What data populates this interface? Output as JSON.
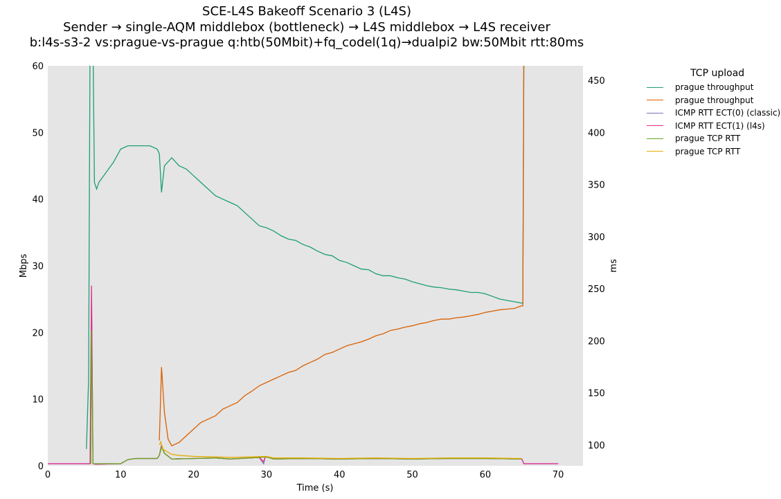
{
  "chart_data": {
    "type": "line",
    "title": [
      "SCE-L4S Bakeoff Scenario 3 (L4S)",
      "Sender → single-AQM middlebox (bottleneck) → L4S middlebox → L4S receiver",
      "b:l4s-s3-2 vs:prague-vs-prague q:htb(50Mbit)+fq_codel(1q)→dualpi2 bw:50Mbit rtt:80ms"
    ],
    "xlabel": "Time (s)",
    "ylabel": "Mbps",
    "y2label": "ms",
    "xlim": [
      0,
      73.4
    ],
    "ylim": [
      0,
      60
    ],
    "y2lim": [
      80,
      464
    ],
    "xticks": [
      0,
      10,
      20,
      30,
      40,
      50,
      60,
      70
    ],
    "yticks": [
      0,
      10,
      20,
      30,
      40,
      50,
      60
    ],
    "y2ticks": [
      100,
      150,
      200,
      250,
      300,
      350,
      400,
      450
    ],
    "grid": false,
    "legend_placement": "outside-right",
    "legend_title": "TCP upload",
    "series": [
      {
        "name": "prague throughput",
        "axis": "left",
        "color": "#1b9e77",
        "x": [
          5.3,
          5.6,
          5.8,
          6.0,
          6.2,
          6.4,
          6.7,
          7,
          8,
          9,
          10,
          11,
          12,
          13,
          14,
          15,
          15.3,
          15.6,
          16,
          17,
          18,
          19,
          20,
          21,
          22,
          23,
          24,
          25,
          26,
          27,
          28,
          29,
          30,
          31,
          32,
          33,
          34,
          35,
          36,
          37,
          38,
          39,
          40,
          41,
          42,
          43,
          44,
          45,
          46,
          47,
          48,
          49,
          50,
          51,
          52,
          53,
          54,
          55,
          56,
          57,
          58,
          59,
          60,
          61,
          62,
          63,
          64,
          65,
          65.15,
          65.3
        ],
        "y": [
          2.5,
          13,
          64,
          64,
          64,
          42.5,
          41.5,
          42.5,
          44,
          45.5,
          47.5,
          48,
          48,
          48,
          48,
          47.5,
          46.8,
          41,
          45,
          46.2,
          45,
          44.5,
          43.5,
          42.5,
          41.5,
          40.5,
          40,
          39.5,
          39,
          38,
          37,
          36,
          35.7,
          35.2,
          34.5,
          34,
          33.8,
          33.2,
          32.8,
          32.2,
          31.7,
          31.5,
          30.8,
          30.5,
          30,
          29.5,
          29.4,
          28.8,
          28.5,
          28.5,
          28.2,
          28,
          27.6,
          27.3,
          27,
          26.8,
          26.7,
          26.5,
          26.4,
          26.2,
          26,
          26,
          25.8,
          25.4,
          25,
          24.8,
          24.6,
          24.4,
          24.4,
          64
        ]
      },
      {
        "name": "prague throughput",
        "axis": "left",
        "color": "#d95f02",
        "x": [
          15.3,
          15.6,
          16,
          16.5,
          17,
          18,
          19,
          20,
          21,
          22,
          23,
          24,
          25,
          26,
          27,
          28,
          29,
          30,
          31,
          32,
          33,
          34,
          35,
          36,
          37,
          38,
          39,
          40,
          41,
          42,
          43,
          44,
          45,
          46,
          47,
          48,
          49,
          50,
          51,
          52,
          53,
          54,
          55,
          56,
          57,
          58,
          59,
          60,
          61,
          62,
          63,
          64,
          65,
          65.15,
          65.3
        ],
        "y": [
          3.8,
          14.8,
          8,
          4,
          3,
          3.5,
          4.5,
          5.5,
          6.5,
          7,
          7.5,
          8.5,
          9,
          9.5,
          10.5,
          11.2,
          12,
          12.5,
          13,
          13.5,
          14,
          14.3,
          15,
          15.5,
          16,
          16.7,
          17,
          17.5,
          18,
          18.3,
          18.6,
          19,
          19.5,
          19.8,
          20.3,
          20.5,
          20.8,
          21,
          21.3,
          21.5,
          21.8,
          22,
          22,
          22.2,
          22.3,
          22.5,
          22.7,
          23,
          23.2,
          23.4,
          23.5,
          23.6,
          24,
          24,
          64
        ]
      },
      {
        "name": "ICMP RTT ECT(0) (classic)",
        "axis": "right",
        "color": "#7570b3",
        "x": [
          0,
          5.5,
          5.8,
          6.0,
          6.2,
          6.5,
          10,
          11,
          12,
          15,
          15.3,
          15.6,
          16,
          17,
          20,
          23,
          25,
          29,
          29.6,
          29.8,
          30,
          31,
          35,
          40,
          45,
          50,
          55,
          60,
          65,
          65.3,
          70
        ],
        "y": [
          82,
          82,
          82,
          240,
          82,
          81.5,
          82,
          86,
          87,
          87,
          90,
          99,
          92,
          86.5,
          87,
          87.5,
          86.5,
          88,
          82,
          88,
          88.5,
          86.5,
          87,
          86.5,
          87,
          86.5,
          87,
          87,
          86.5,
          82,
          82
        ]
      },
      {
        "name": "ICMP RTT ECT(1) (l4s)",
        "axis": "right",
        "color": "#e7298a",
        "x": [
          0,
          5.5,
          5.8,
          6.0,
          6.2,
          6.5,
          10,
          11,
          12,
          15,
          15.3,
          15.6,
          16,
          17,
          20,
          23,
          25,
          29,
          29.6,
          29.8,
          30,
          31,
          35,
          40,
          45,
          50,
          55,
          60,
          65,
          65.3,
          70
        ],
        "y": [
          82,
          82,
          82,
          253,
          82,
          81.5,
          82,
          86,
          87,
          87,
          90,
          100,
          92,
          86.5,
          87,
          87.5,
          86.5,
          88,
          84,
          88,
          88.5,
          86.5,
          87,
          86.5,
          87,
          86.5,
          87,
          87,
          86.5,
          82,
          82
        ]
      },
      {
        "name": "prague TCP RTT",
        "axis": "right",
        "color": "#66a61e",
        "x": [
          5.9,
          6.0,
          6.2,
          6.5,
          10,
          11,
          12,
          15,
          15.3,
          15.6,
          16,
          17,
          20,
          23,
          25,
          29,
          30,
          31,
          35,
          40,
          45,
          50,
          55,
          60,
          65
        ],
        "y": [
          82,
          210,
          82,
          82,
          82,
          86,
          87,
          87,
          90,
          98,
          92,
          86.5,
          87,
          87.5,
          86.5,
          88,
          88.5,
          86.5,
          87,
          86.5,
          87,
          86.5,
          87,
          87,
          86.5
        ]
      },
      {
        "name": "prague TCP RTT",
        "axis": "right",
        "color": "#e6ab02",
        "x": [
          15.3,
          15.5,
          15.8,
          16,
          17,
          18,
          20,
          23,
          25,
          28,
          30,
          31,
          35,
          40,
          45,
          50,
          55,
          60,
          65
        ],
        "y": [
          100,
          103,
          96,
          95,
          91,
          90,
          89,
          88.5,
          88,
          88.5,
          89,
          87.5,
          87.5,
          87,
          87.5,
          87,
          87.5,
          87.5,
          87
        ]
      }
    ]
  }
}
